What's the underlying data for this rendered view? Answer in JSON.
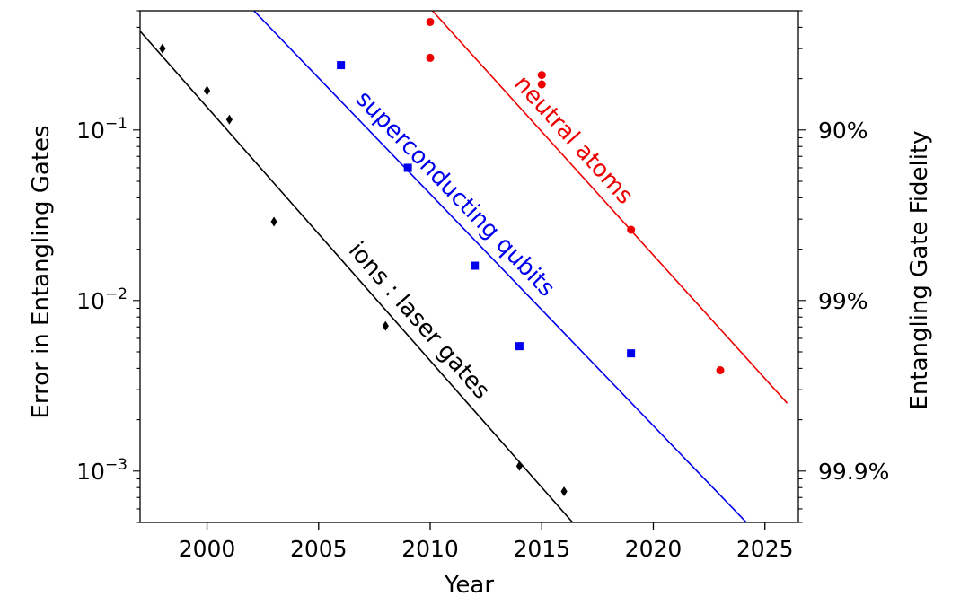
{
  "chart_data": {
    "type": "scatter",
    "xlabel": "Year",
    "ylabel": "Error in Entangling Gates",
    "y2label": "Entangling Gate Fidelity",
    "xlim": [
      1997,
      2026.5
    ],
    "ylim": [
      0.0005,
      0.5
    ],
    "yscale": "log",
    "grid": false,
    "x_ticks": [
      2000,
      2005,
      2010,
      2015,
      2020,
      2025
    ],
    "y_ticks": [
      {
        "value": 0.1,
        "base": "10",
        "exp": "−1"
      },
      {
        "value": 0.01,
        "base": "10",
        "exp": "−2"
      },
      {
        "value": 0.001,
        "base": "10",
        "exp": "−3"
      }
    ],
    "y2_ticks": [
      {
        "value": 0.1,
        "label": "90%"
      },
      {
        "value": 0.01,
        "label": "99%"
      },
      {
        "value": 0.001,
        "label": "99.9%"
      }
    ],
    "series": [
      {
        "name": "ions : laser gates",
        "color": "#000000",
        "marker": "diamond",
        "points": [
          [
            1998,
            0.3
          ],
          [
            2000,
            0.17
          ],
          [
            2001,
            0.115
          ],
          [
            2003,
            0.029
          ],
          [
            2008,
            0.0071
          ],
          [
            2014,
            0.00107
          ],
          [
            2016,
            0.00076
          ]
        ],
        "trend": [
          [
            1997,
            0.38
          ],
          [
            2016.5,
            0.00048
          ]
        ]
      },
      {
        "name": "superconducting qubits",
        "color": "#0000ee",
        "marker": "square",
        "points": [
          [
            2006,
            0.24
          ],
          [
            2009,
            0.06
          ],
          [
            2012,
            0.016
          ],
          [
            2014,
            0.0054
          ],
          [
            2019,
            0.0049
          ]
        ],
        "trend": [
          [
            2002.1,
            0.5
          ],
          [
            2024.3,
            0.00048
          ]
        ]
      },
      {
        "name": "neutral atoms",
        "color": "#ee0000",
        "marker": "circle",
        "points": [
          [
            2010,
            0.43
          ],
          [
            2010,
            0.265
          ],
          [
            2015,
            0.21
          ],
          [
            2015,
            0.185
          ],
          [
            2019,
            0.026
          ],
          [
            2023,
            0.0039
          ]
        ],
        "trend": [
          [
            2010.1,
            0.5
          ],
          [
            2026,
            0.0025
          ]
        ]
      }
    ]
  }
}
